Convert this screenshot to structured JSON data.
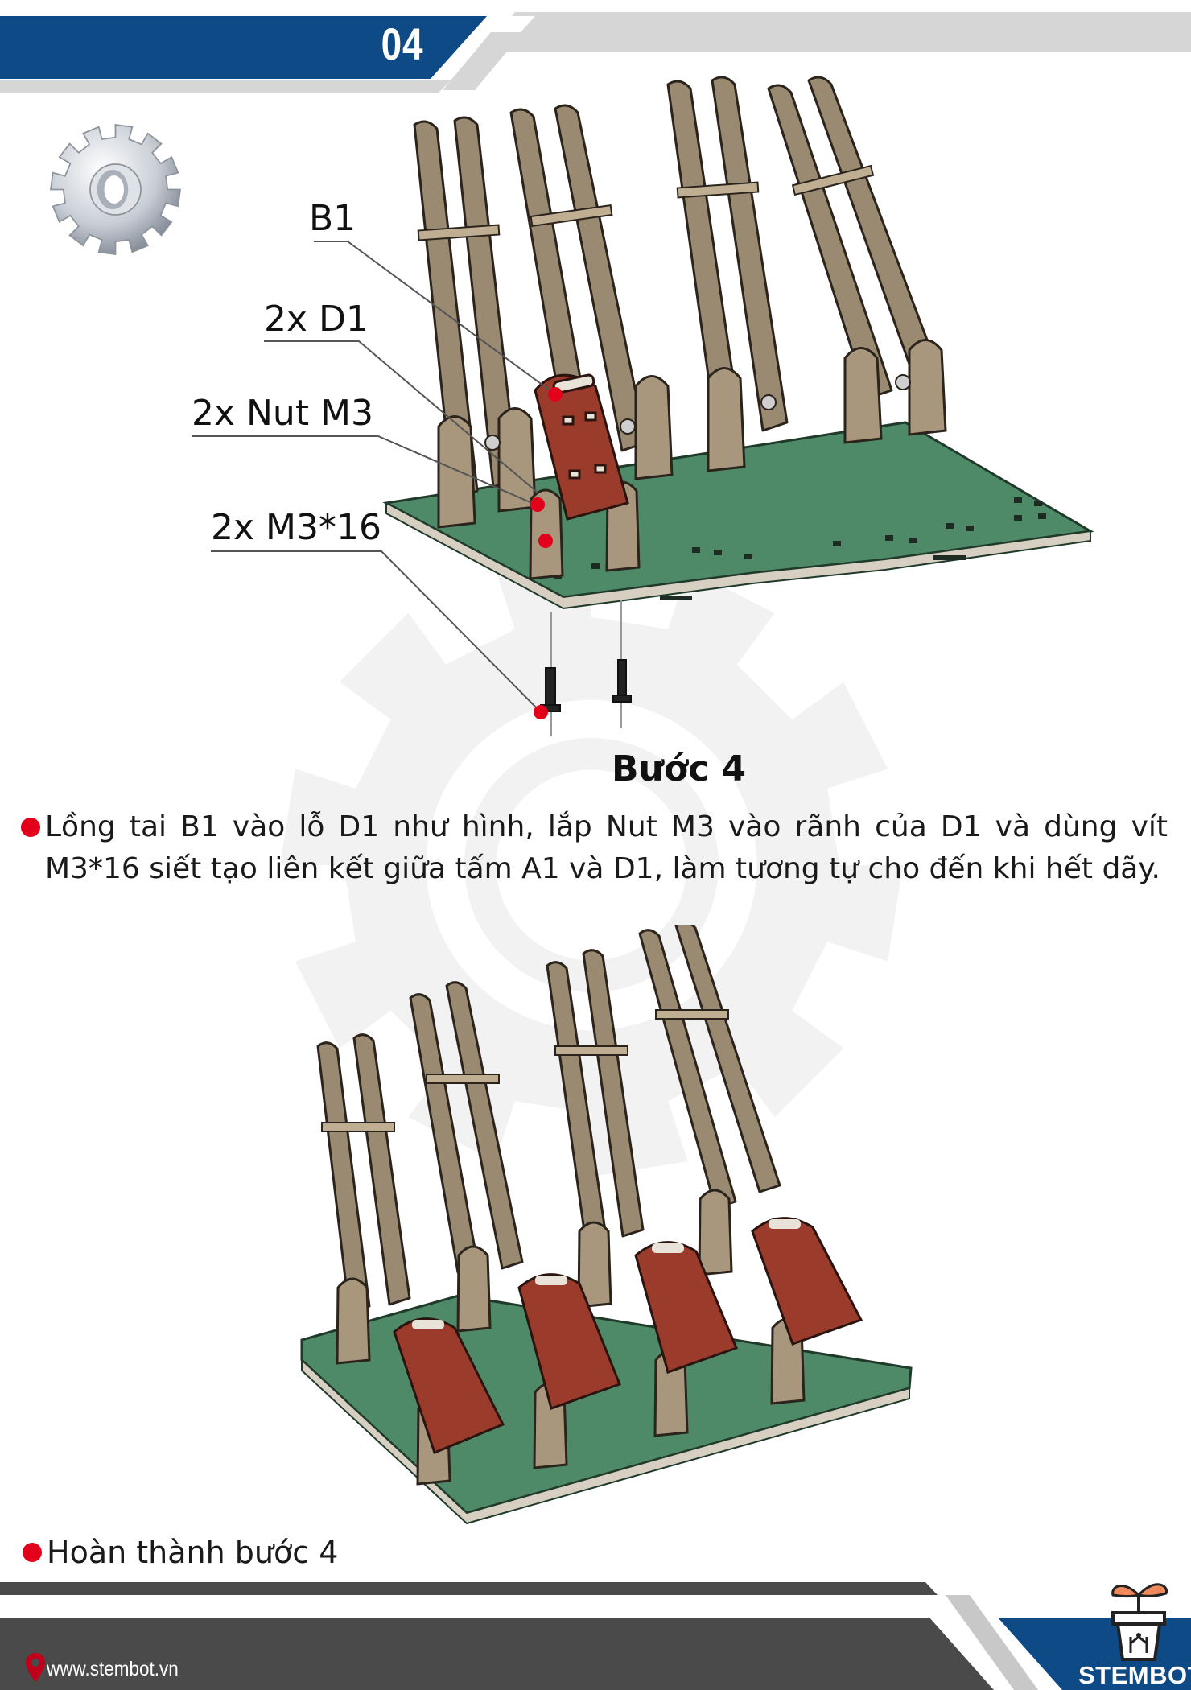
{
  "header": {
    "step_number": "04"
  },
  "callouts": {
    "b1": "B1",
    "d1": "2x D1",
    "nut": "2x Nut M3",
    "screw": "2x M3*16"
  },
  "step_title": "Bước 4",
  "instruction": "Lồng tai B1 vào lỗ D1 như hình, lắp Nut M3 vào rãnh của D1 và dùng vít M3*16 siết tạo liên kết giữa tấm A1 và D1, làm tương tự cho đến khi hết dãy.",
  "completion": "Hoàn thành bước 4",
  "footer": {
    "website": "www.stembot.vn",
    "brand": "STEMBOT"
  },
  "colors": {
    "header_blue": "#0d4a86",
    "header_grey": "#d6d6d6",
    "footer_dark": "#4a4a4a",
    "bullet_red": "#e3001b",
    "board_green": "#4f8a68",
    "wood": "#9a8a72",
    "seat_red": "#9b3b2c"
  },
  "icons": [
    "gear-icon",
    "location-pin-icon",
    "plant-pot-logo-icon"
  ]
}
